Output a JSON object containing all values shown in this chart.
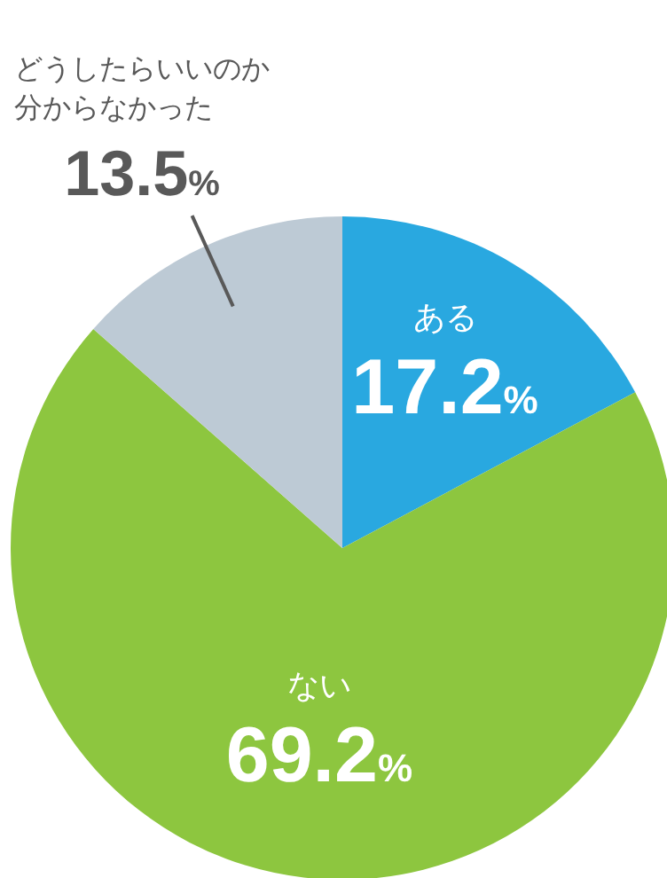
{
  "chart_data": {
    "type": "pie",
    "categories": [
      "ある",
      "ない",
      "どうしたらいいのか分からなかった"
    ],
    "values": [
      17.2,
      69.2,
      13.5
    ],
    "colors": [
      "#29a8e0",
      "#8dc63f",
      "#bdcad5"
    ],
    "value_labels": [
      "17.2%",
      "69.2%",
      "13.5%"
    ]
  }
}
